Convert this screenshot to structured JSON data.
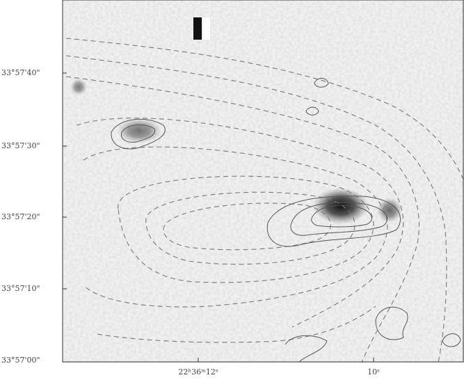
{
  "y_axis": {
    "labels": [
      "33°57'40\"",
      "33°57'30\"",
      "33°57'20\"",
      "33°57'10\"",
      "33°57'00\""
    ]
  },
  "x_axis": {
    "labels": [
      "22ʰ36ᵐ12ˢ",
      "10ˢ"
    ]
  }
}
